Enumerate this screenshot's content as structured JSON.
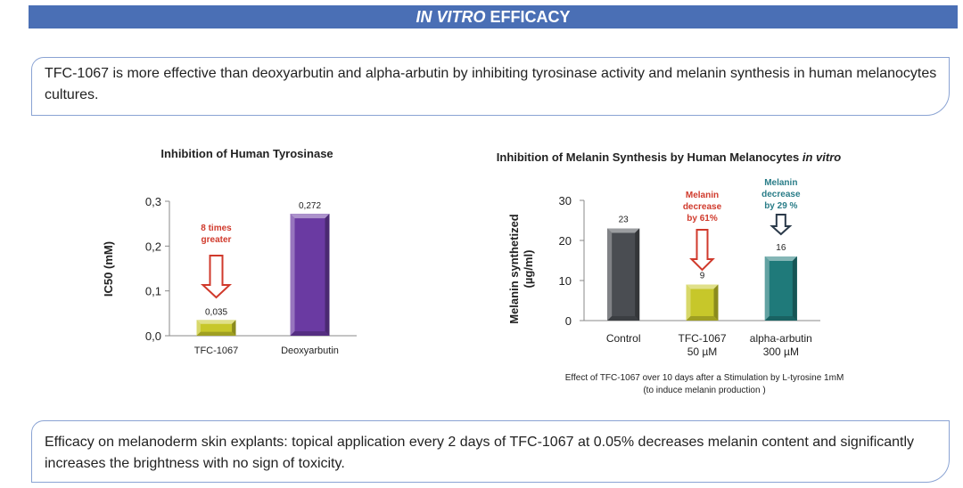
{
  "header": {
    "title_italic": "IN VITRO",
    "title_rest": " EFFICACY"
  },
  "intro_text": "TFC-1067 is more effective than deoxyarbutin and alpha-arbutin by inhibiting tyrosinase activity and melanin synthesis in human melanocytes cultures.",
  "footer_text": "Efficacy on melanoderm skin explants:  topical application every 2 days of TFC-1067 at 0.05% decreases melanin content and significantly increases the brightness with no sign of toxicity.",
  "chart_data": [
    {
      "type": "bar",
      "title": "Inhibition of Human Tyrosinase",
      "ylabel": "IC50 (mM)",
      "xlabel": "",
      "ylim": [
        0,
        0.3
      ],
      "yticks": [
        0,
        0.1,
        0.2,
        0.3
      ],
      "ytick_labels": [
        "0,0",
        "0,1",
        "0,2",
        "0,3"
      ],
      "categories": [
        "TFC-1067",
        "Deoxyarbutin"
      ],
      "values": [
        0.035,
        0.272
      ],
      "data_labels": [
        "0,035",
        "0,272"
      ],
      "colors": [
        "#c7c72a",
        "#6a3aa2"
      ],
      "annotation": {
        "lines": [
          "8 times",
          "greater"
        ],
        "color": "#d03a2c"
      },
      "grid": false
    },
    {
      "type": "bar",
      "title_main": "Inhibition of Melanin Synthesis by Human Melanocytes ",
      "title_italic": "in vitro",
      "ylabel_lines": [
        "Melanin synthetized",
        "(µg/ml)"
      ],
      "xlabel": "",
      "ylim": [
        0,
        30
      ],
      "yticks": [
        0,
        10,
        20,
        30
      ],
      "ytick_labels": [
        "0",
        "10",
        "20",
        "30"
      ],
      "categories": [
        [
          "Control"
        ],
        [
          "TFC-1067",
          "50 µM"
        ],
        [
          "alpha-arbutin",
          "300 µM"
        ]
      ],
      "values": [
        23,
        9,
        16
      ],
      "data_labels": [
        "23",
        "9",
        "16"
      ],
      "colors": [
        "#4a4d52",
        "#c7c72a",
        "#1f7a7a"
      ],
      "annotations": [
        {
          "lines": [
            "Melanin",
            "decrease",
            "by 61%"
          ],
          "color": "#d03a2c"
        },
        {
          "lines": [
            "Melanin",
            "decrease",
            "by 29 %"
          ],
          "color": "#2a7d88"
        }
      ],
      "caption_lines": [
        "Effect of TFC-1067 over 10 days after a Stimulation by L-tyrosine 1mM",
        "(to induce melanin production )"
      ],
      "grid": false
    }
  ]
}
